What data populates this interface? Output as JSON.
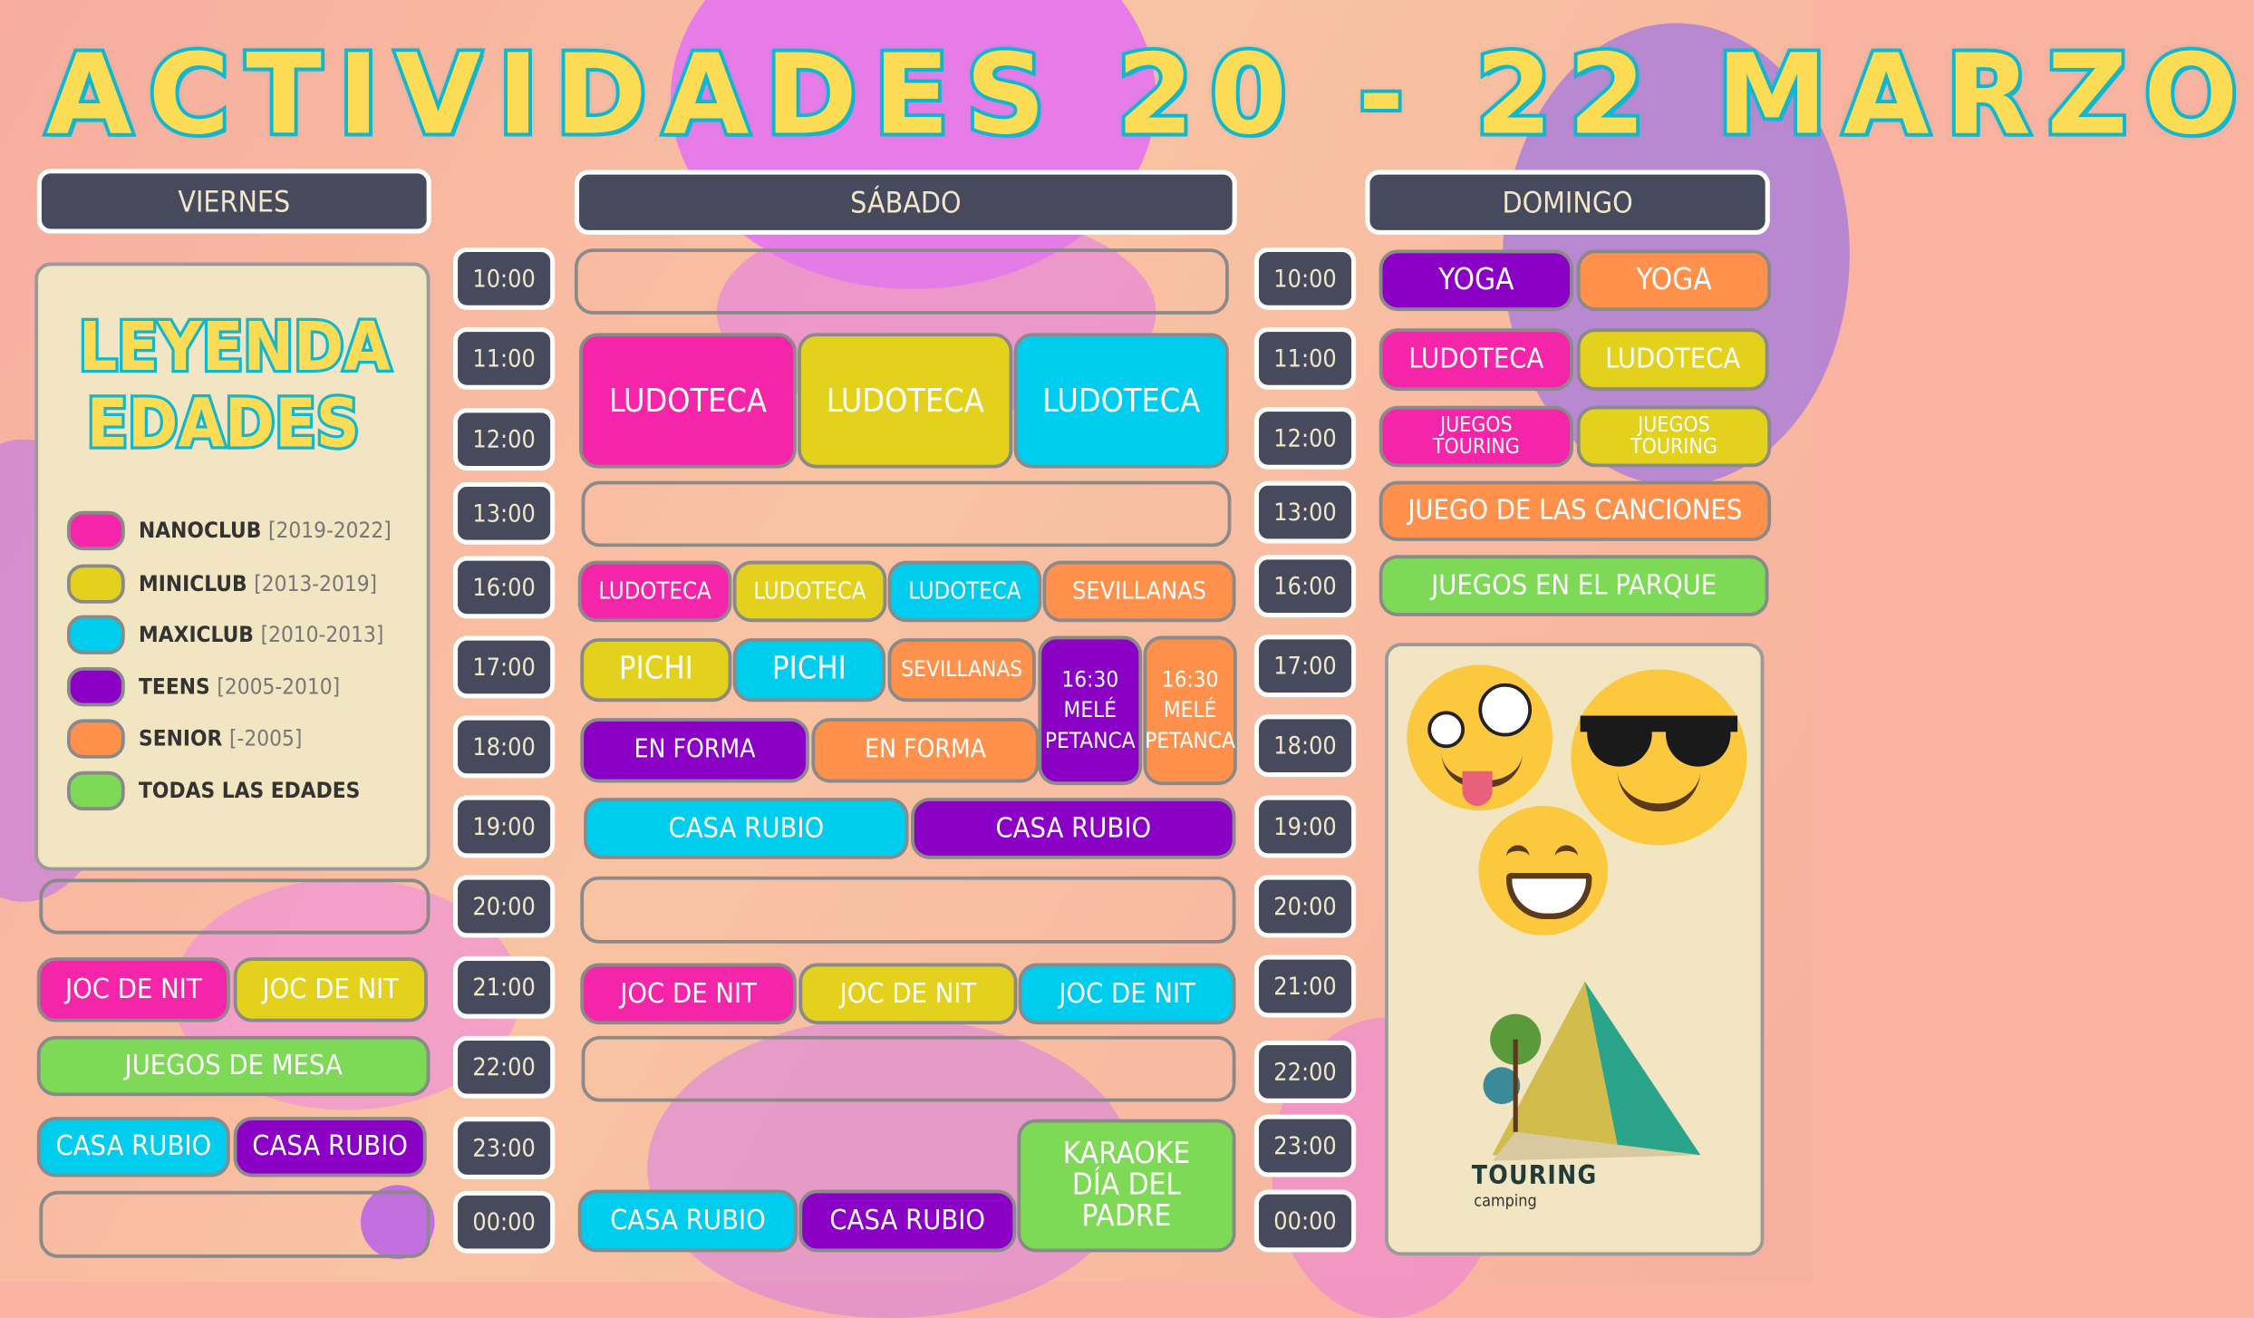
{
  "title": "ACTIVIDADES 20 - 22 MARZO",
  "days": {
    "viernes": "VIERNES",
    "sabado": "SÁBADO",
    "domingo": "DOMINGO"
  },
  "times_left": [
    "10:00",
    "11:00",
    "12:00",
    "13:00",
    "16:00",
    "17:00",
    "18:00",
    "19:00",
    "20:00",
    "21:00",
    "22:00",
    "23:00",
    "00:00"
  ],
  "times_right": [
    "10:00",
    "11:00",
    "12:00",
    "13:00",
    "16:00",
    "17:00",
    "18:00",
    "19:00",
    "20:00",
    "21:00",
    "22:00",
    "23:00",
    "00:00"
  ],
  "legend": {
    "title1": "LEYENDA",
    "title2": "EDADES",
    "items": [
      {
        "name": "NANOCLUB",
        "range": "[2019-2022]",
        "color": "#f425a8"
      },
      {
        "name": "MINICLUB",
        "range": "[2013-2019]",
        "color": "#e3d11e"
      },
      {
        "name": "MAXICLUB",
        "range": "[2010-2013]",
        "color": "#00ccee"
      },
      {
        "name": "TEENS",
        "range": "[2005-2010]",
        "color": "#8a00c4"
      },
      {
        "name": "SENIOR",
        "range": "[-2005]",
        "color": "#ff914d"
      },
      {
        "name": "TODAS LAS EDADES",
        "range": "",
        "color": "#7ed957"
      }
    ]
  },
  "viernes": {
    "joc": "JOC DE NIT",
    "mesa": "JUEGOS DE MESA",
    "casa": "CASA RUBIO"
  },
  "sabado": {
    "ludoteca": "LUDOTECA",
    "sevillanas": "SEVILLANAS",
    "pichi": "PICHI",
    "mele1": "16:30",
    "mele2": "MELÉ",
    "mele3": "PETANCA",
    "forma": "EN FORMA",
    "casa": "CASA RUBIO",
    "joc": "JOC DE NIT",
    "karaoke1": "KARAOKE",
    "karaoke2": "DÍA DEL",
    "karaoke3": "PADRE"
  },
  "domingo": {
    "yoga": "YOGA",
    "ludoteca": "LUDOTECA",
    "touring1": "JUEGOS",
    "touring2": "TOURING",
    "canciones": "JUEGO DE LAS CANCIONES",
    "parque": "JUEGOS EN EL PARQUE"
  },
  "logo": {
    "name": "TOURING",
    "sub": "camping"
  },
  "colors": {
    "nanoclub": "#f425a8",
    "miniclub": "#e3d11e",
    "maxiclub": "#00ccee",
    "teens": "#8a00c4",
    "senior": "#ff914d",
    "todas": "#7ed957",
    "header": "#464a5c"
  }
}
